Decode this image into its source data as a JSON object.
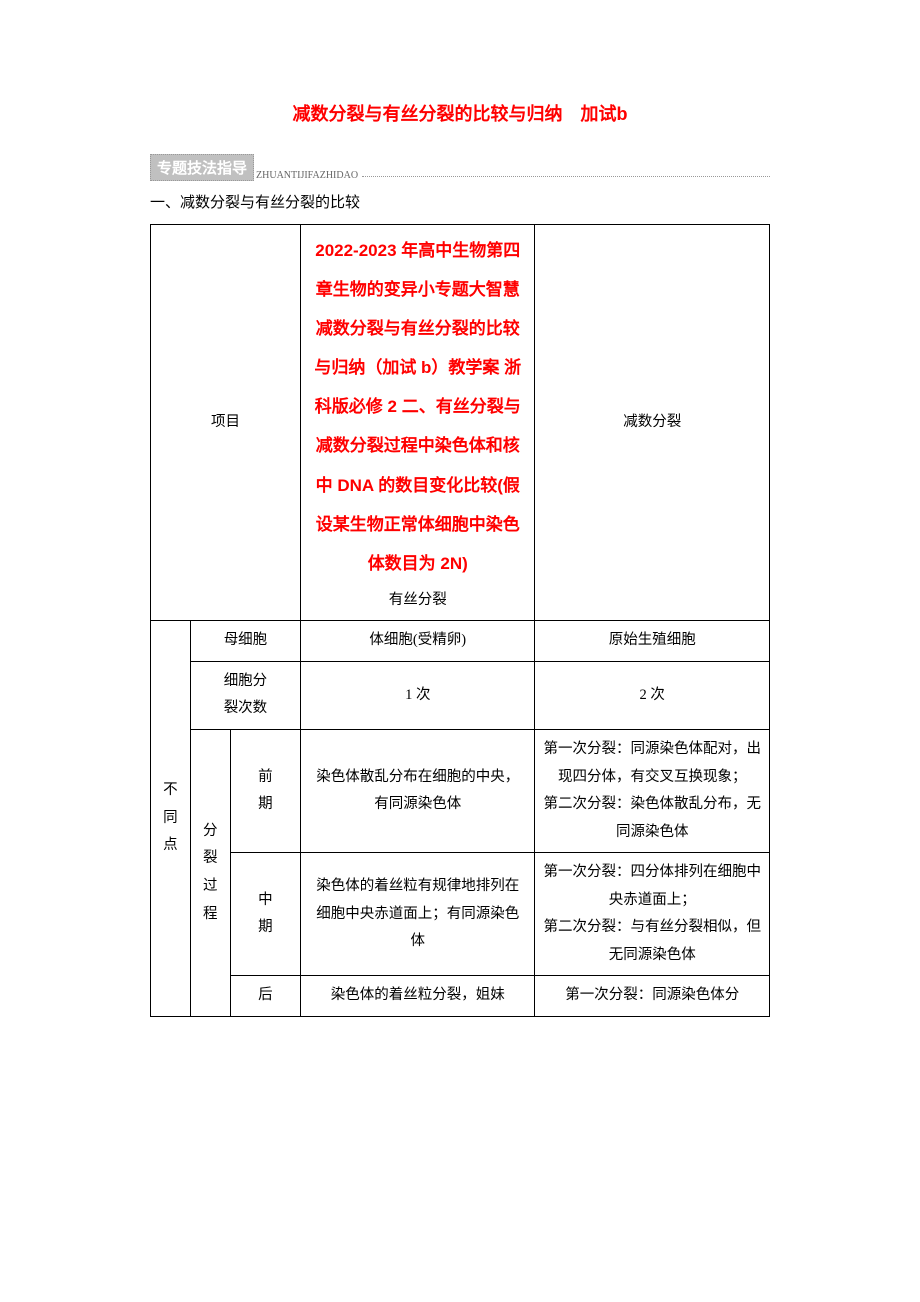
{
  "title": "减数分裂与有丝分裂的比较与归纳　加试b",
  "section_badge": "专题技法指导",
  "section_pinyin": "ZHUANTIJIFAZHIDAO",
  "subsection_1": "一、减数分裂与有丝分裂的比较",
  "header": {
    "xiangmu": "项目",
    "red_text": "2022-2023 年高中生物第四章生物的变异小专题大智慧减数分裂与有丝分裂的比较与归纳（加试 b）教学案 浙科版必修 2 二、有丝分裂与减数分裂过程中染色体和核中 DNA 的数目变化比较(假设某生物正常体细胞中染色体数目为 2N)",
    "mitosis": "有丝分裂",
    "meiosis": "减数分裂"
  },
  "rows": {
    "butong": "不同点",
    "muxibao_label": "母细胞",
    "muxibao_mitosis": "体细胞(受精卵)",
    "muxibao_meiosis": "原始生殖细胞",
    "fenliecishu_label_1": "细胞分",
    "fenliecishu_label_2": "裂次数",
    "fenliecishu_mitosis": "1 次",
    "fenliecishu_meiosis": "2 次",
    "fenlieguo": "分裂过程",
    "qianqi_label_1": "前",
    "qianqi_label_2": "期",
    "qianqi_mitosis": "染色体散乱分布在细胞的中央，有同源染色体",
    "qianqi_meiosis": "第一次分裂：同源染色体配对，出现四分体，有交叉互换现象；\n第二次分裂：染色体散乱分布，无同源染色体",
    "zhongqi_label_1": "中",
    "zhongqi_label_2": "期",
    "zhongqi_mitosis": "染色体的着丝粒有规律地排列在细胞中央赤道面上；有同源染色体",
    "zhongqi_meiosis": "第一次分裂：四分体排列在细胞中央赤道面上；\n第二次分裂：与有丝分裂相似，但无同源染色体",
    "houqi_label": "后",
    "houqi_mitosis": "染色体的着丝粒分裂，姐妹",
    "houqi_meiosis": "第一次分裂：同源染色体分"
  },
  "colors": {
    "title_color": "#ff0000",
    "badge_bg": "#c0c0c0",
    "badge_fg": "#ffffff",
    "border": "#000000",
    "text": "#000000",
    "pinyin": "#666666"
  }
}
